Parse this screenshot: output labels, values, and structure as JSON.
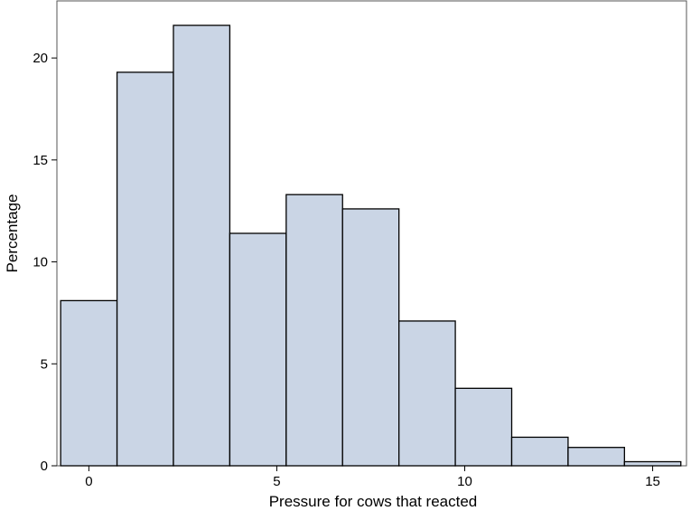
{
  "chart_data": {
    "type": "bar",
    "subtype": "histogram",
    "xlabel": "Pressure for cows that reacted",
    "ylabel": "Percentage",
    "bin_width": 1.5,
    "bins": [
      {
        "start": -0.75,
        "end": 0.75,
        "value": 8.1
      },
      {
        "start": 0.75,
        "end": 2.25,
        "value": 19.3
      },
      {
        "start": 2.25,
        "end": 3.75,
        "value": 21.6
      },
      {
        "start": 3.75,
        "end": 5.25,
        "value": 11.4
      },
      {
        "start": 5.25,
        "end": 6.75,
        "value": 13.3
      },
      {
        "start": 6.75,
        "end": 8.25,
        "value": 12.6
      },
      {
        "start": 8.25,
        "end": 9.75,
        "value": 7.1
      },
      {
        "start": 9.75,
        "end": 11.25,
        "value": 3.8
      },
      {
        "start": 11.25,
        "end": 12.75,
        "value": 1.4
      },
      {
        "start": 12.75,
        "end": 14.25,
        "value": 0.9
      },
      {
        "start": 14.25,
        "end": 15.75,
        "value": 0.2
      }
    ],
    "xlim": [
      -0.85,
      15.9
    ],
    "ylim": [
      0,
      22.8
    ],
    "xticks": [
      0,
      5,
      10,
      15
    ],
    "yticks": [
      0,
      5,
      10,
      15,
      20
    ],
    "bar_color": "#CAD5E5",
    "edge_color": "#000000",
    "grid": false,
    "legend": "none"
  }
}
